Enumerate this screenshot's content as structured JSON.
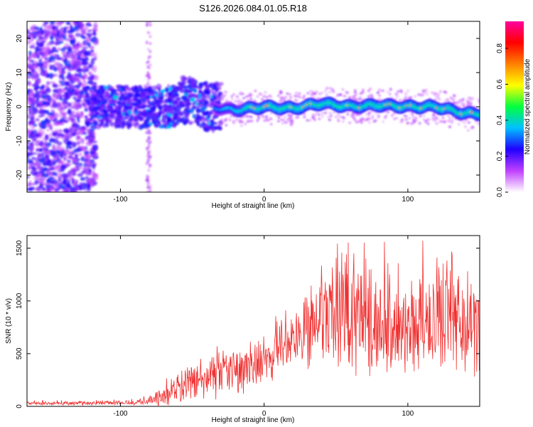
{
  "chart_data": [
    {
      "type": "heatmap",
      "title": "S126.2026.084.01.05.R18",
      "xlabel": "Height of straight line (km)",
      "ylabel": "Frequency (Hz)",
      "xlim": [
        -165,
        150
      ],
      "ylim": [
        -25,
        25
      ],
      "xticks": [
        -100,
        0,
        100
      ],
      "xtick_labels": [
        "-100",
        "0",
        "100"
      ],
      "yticks": [
        -20,
        -10,
        0,
        10,
        20
      ],
      "ytick_labels": [
        "-20",
        "-10",
        "0",
        "10",
        "20"
      ],
      "colorbar": {
        "label": "Normalized spectral amplitude",
        "range": [
          0,
          0.95
        ],
        "ticks": [
          0.0,
          0.2,
          0.4,
          0.6,
          0.8
        ],
        "tick_labels": [
          "0.0",
          "0.2",
          "0.4",
          "0.6",
          "0.8"
        ],
        "colors": [
          "#ffffff",
          "#c040ff",
          "#2000ff",
          "#00c0ff",
          "#00ff40",
          "#ffff00",
          "#ff8000",
          "#ff0000",
          "#ff00a0"
        ]
      },
      "ridge": {
        "x": [
          -120,
          -100,
          -80,
          -60,
          -40,
          -20,
          0,
          20,
          40,
          60,
          80,
          100,
          120,
          140,
          150
        ],
        "frequency": [
          0,
          0,
          0,
          1,
          0,
          -1,
          0,
          -0.5,
          1,
          0,
          0.5,
          0,
          0,
          -2,
          -2
        ]
      }
    },
    {
      "type": "line",
      "xlabel": "Height of straight line (km)",
      "ylabel": "SNR (10 * v/v)",
      "xlim": [
        -165,
        150
      ],
      "ylim": [
        0,
        1620
      ],
      "xticks": [
        -100,
        0,
        100
      ],
      "xtick_labels": [
        "-100",
        "0",
        "100"
      ],
      "yticks": [
        0,
        500,
        1000,
        1500
      ],
      "ytick_labels": [
        "0",
        "500",
        "1000",
        "1500"
      ],
      "color": "#f03030",
      "series": [
        {
          "name": "SNR",
          "envelope_x": [
            -165,
            -120,
            -90,
            -75,
            -65,
            -50,
            -40,
            -25,
            -10,
            0,
            10,
            20,
            30,
            35,
            50,
            70,
            90,
            110,
            125,
            140,
            150
          ],
          "envelope_mean": [
            30,
            30,
            40,
            60,
            150,
            220,
            260,
            320,
            380,
            480,
            560,
            620,
            700,
            850,
            820,
            780,
            800,
            820,
            850,
            780,
            760
          ],
          "envelope_amp": [
            20,
            20,
            30,
            60,
            150,
            200,
            230,
            260,
            280,
            300,
            320,
            360,
            420,
            480,
            520,
            560,
            560,
            600,
            620,
            560,
            540
          ]
        }
      ]
    }
  ]
}
